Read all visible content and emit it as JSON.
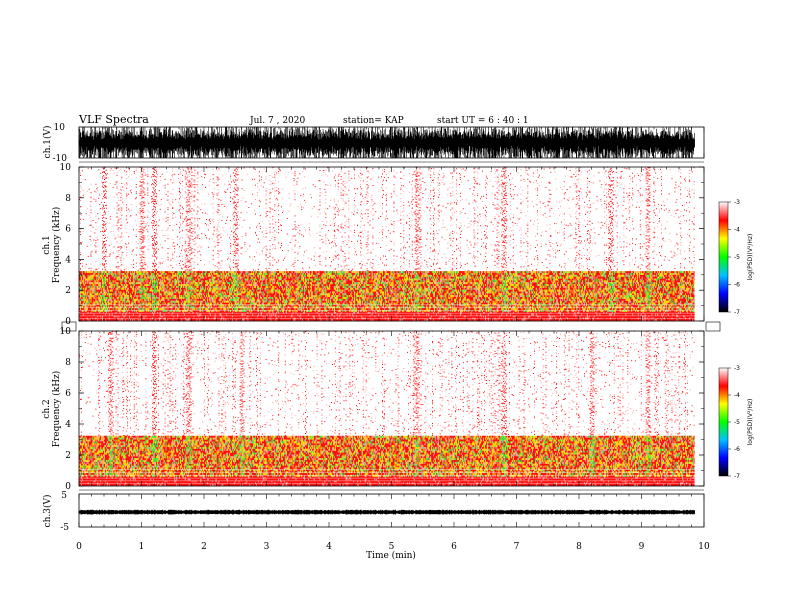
{
  "header": {
    "title": "VLF Spectra",
    "date": "Jul. 7 , 2020",
    "station": "station= KAP",
    "start": "start UT =  6 : 40 : 1"
  },
  "colorbar": {
    "label": "log(PSD)(V²/Hz)",
    "ticks": [
      "-3",
      "-4",
      "-5",
      "-6",
      "-7"
    ],
    "colors": [
      "#ffffff",
      "#ff0000",
      "#ffff00",
      "#00ff00",
      "#00c0ff",
      "#0000ff",
      "#000000"
    ]
  },
  "chart_data": [
    {
      "type": "line",
      "panel": "ch1-waveform",
      "ylabel": "ch.1(V)",
      "ylim": [
        -10,
        10
      ],
      "yticks": [
        "10",
        "-10"
      ],
      "xlim": [
        0,
        10
      ],
      "description_of_signal": "dense noisy waveform saturating near ±10 V"
    },
    {
      "type": "heatmap",
      "panel": "ch1-spectrogram",
      "ylabel": "ch.1 Frequency (kHz)",
      "ylabel_top": "ch.1",
      "ylabel_bottom": "Frequency (kHz)",
      "ylim": [
        0,
        10
      ],
      "yticks": [
        "0",
        "2",
        "4",
        "6",
        "8",
        "10"
      ],
      "xlim": [
        0,
        10
      ],
      "bands_khz": [
        [
          0.5,
          3.2
        ]
      ],
      "strong_times_min": [
        0.4,
        1.0,
        1.2,
        1.75,
        2.5,
        5.4,
        6.8,
        8.5,
        9.1
      ]
    },
    {
      "type": "heatmap",
      "panel": "ch2-spectrogram",
      "ylabel_top": "ch.2",
      "ylabel_bottom": "Frequency (kHz)",
      "ylim": [
        0,
        10
      ],
      "yticks": [
        "0",
        "2",
        "4",
        "6",
        "8",
        "10"
      ],
      "xlim": [
        0,
        10
      ],
      "bands_khz": [
        [
          0.5,
          3.2
        ]
      ],
      "strong_times_min": [
        0.5,
        1.2,
        1.75,
        2.6,
        5.4,
        6.8,
        8.2,
        9.1
      ]
    },
    {
      "type": "line",
      "panel": "ch3-waveform",
      "ylabel": "ch.3(V)",
      "ylim": [
        -5,
        5
      ],
      "yticks": [
        "5",
        "-5"
      ],
      "xlim": [
        0,
        10
      ],
      "level_v": -0.5,
      "amplitude_v": 0.6
    }
  ],
  "xaxis": {
    "label": "Time (min)",
    "ticks": [
      "0",
      "1",
      "2",
      "3",
      "4",
      "5",
      "6",
      "7",
      "8",
      "9",
      "10"
    ],
    "data_end_min": 9.85
  }
}
